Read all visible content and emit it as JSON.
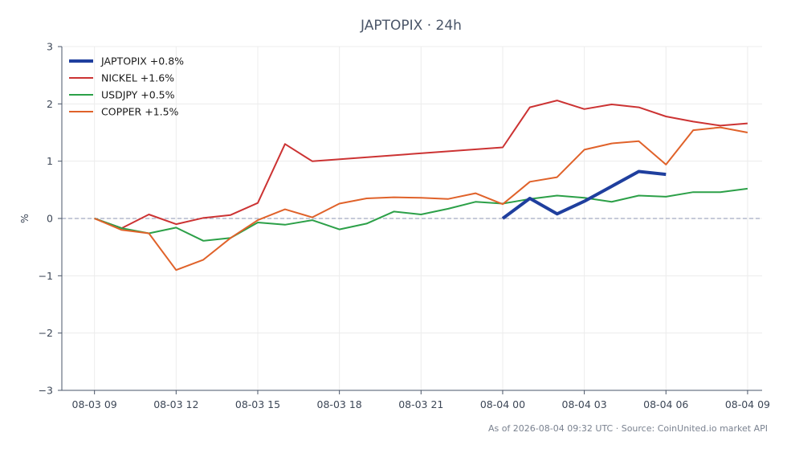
{
  "chart_data": {
    "type": "line",
    "title": "JAPTOPIX · 24h",
    "xlabel": "",
    "ylabel": "%",
    "ylim": [
      -3,
      3
    ],
    "xlim": [
      "2026-08-03 07:48",
      "2026-08-04 09:32"
    ],
    "yticks": [
      "3",
      "2",
      "1",
      "0",
      "−1",
      "−2",
      "−3"
    ],
    "yticks_values": [
      3,
      2,
      1,
      0,
      -1,
      -2,
      -3
    ],
    "xticks": [
      "08-03 09",
      "08-03 12",
      "08-03 15",
      "08-03 18",
      "08-03 21",
      "08-04 00",
      "08-04 03",
      "08-04 06",
      "08-04 09"
    ],
    "xticks_values": [
      "2026-08-03 09:00",
      "2026-08-03 12:00",
      "2026-08-03 15:00",
      "2026-08-03 18:00",
      "2026-08-03 21:00",
      "2026-08-04 00:00",
      "2026-08-04 03:00",
      "2026-08-04 06:00",
      "2026-08-04 09:00"
    ],
    "grid": true,
    "zero_line": true,
    "legend_position": "top-left",
    "series": [
      {
        "name": "JAPTOPIX +0.8%",
        "color": "#1f3f9e",
        "bold": true,
        "x": [
          "2026-08-04 00:00",
          "2026-08-04 01:00",
          "2026-08-04 02:00",
          "2026-08-04 03:00",
          "2026-08-04 04:00",
          "2026-08-04 05:00",
          "2026-08-04 06:00"
        ],
        "values": [
          0.0,
          0.35,
          0.08,
          0.3,
          0.56,
          0.82,
          0.77
        ]
      },
      {
        "name": "NICKEL +1.6%",
        "color": "#cc3333",
        "bold": false,
        "x": [
          "2026-08-03 09:00",
          "2026-08-03 10:00",
          "2026-08-03 11:00",
          "2026-08-03 12:00",
          "2026-08-03 13:00",
          "2026-08-03 14:00",
          "2026-08-03 15:00",
          "2026-08-03 16:00",
          "2026-08-03 17:00",
          "2026-08-04 00:00",
          "2026-08-04 01:00",
          "2026-08-04 02:00",
          "2026-08-04 03:00",
          "2026-08-04 04:00",
          "2026-08-04 05:00",
          "2026-08-04 06:00",
          "2026-08-04 07:00",
          "2026-08-04 08:00",
          "2026-08-04 09:00"
        ],
        "values": [
          0.0,
          -0.17,
          0.07,
          -0.1,
          0.01,
          0.06,
          0.27,
          1.3,
          1.0,
          1.24,
          1.94,
          2.06,
          1.91,
          1.99,
          1.94,
          1.78,
          1.69,
          1.62,
          1.66
        ]
      },
      {
        "name": "USDJPY +0.5%",
        "color": "#2ca048",
        "bold": false,
        "x": [
          "2026-08-03 09:00",
          "2026-08-03 10:00",
          "2026-08-03 11:00",
          "2026-08-03 12:00",
          "2026-08-03 13:00",
          "2026-08-03 14:00",
          "2026-08-03 15:00",
          "2026-08-03 16:00",
          "2026-08-03 17:00",
          "2026-08-03 18:00",
          "2026-08-03 19:00",
          "2026-08-03 20:00",
          "2026-08-03 21:00",
          "2026-08-03 22:00",
          "2026-08-03 23:00",
          "2026-08-04 00:00",
          "2026-08-04 01:00",
          "2026-08-04 02:00",
          "2026-08-04 03:00",
          "2026-08-04 04:00",
          "2026-08-04 05:00",
          "2026-08-04 06:00",
          "2026-08-04 07:00",
          "2026-08-04 08:00",
          "2026-08-04 09:00"
        ],
        "values": [
          0.0,
          -0.17,
          -0.26,
          -0.16,
          -0.39,
          -0.34,
          -0.07,
          -0.11,
          -0.03,
          -0.19,
          -0.09,
          0.12,
          0.07,
          0.17,
          0.29,
          0.26,
          0.34,
          0.4,
          0.36,
          0.29,
          0.4,
          0.38,
          0.46,
          0.46,
          0.52
        ]
      },
      {
        "name": "COPPER +1.5%",
        "color": "#e0622a",
        "bold": false,
        "x": [
          "2026-08-03 09:00",
          "2026-08-03 10:00",
          "2026-08-03 11:00",
          "2026-08-03 12:00",
          "2026-08-03 13:00",
          "2026-08-03 14:00",
          "2026-08-03 15:00",
          "2026-08-03 16:00",
          "2026-08-03 17:00",
          "2026-08-03 18:00",
          "2026-08-03 19:00",
          "2026-08-03 20:00",
          "2026-08-03 21:00",
          "2026-08-03 22:00",
          "2026-08-03 23:00",
          "2026-08-04 00:00",
          "2026-08-04 01:00",
          "2026-08-04 02:00",
          "2026-08-04 03:00",
          "2026-08-04 04:00",
          "2026-08-04 05:00",
          "2026-08-04 06:00",
          "2026-08-04 07:00",
          "2026-08-04 08:00",
          "2026-08-04 09:00"
        ],
        "values": [
          0.0,
          -0.2,
          -0.26,
          -0.9,
          -0.72,
          -0.34,
          -0.03,
          0.16,
          0.02,
          0.26,
          0.35,
          0.37,
          0.36,
          0.34,
          0.44,
          0.25,
          0.64,
          0.72,
          1.2,
          1.31,
          1.35,
          0.94,
          1.54,
          1.59,
          1.5
        ]
      }
    ],
    "footnote": "As of 2026-08-04 09:32 UTC · Source: CoinUnited.io market API"
  }
}
